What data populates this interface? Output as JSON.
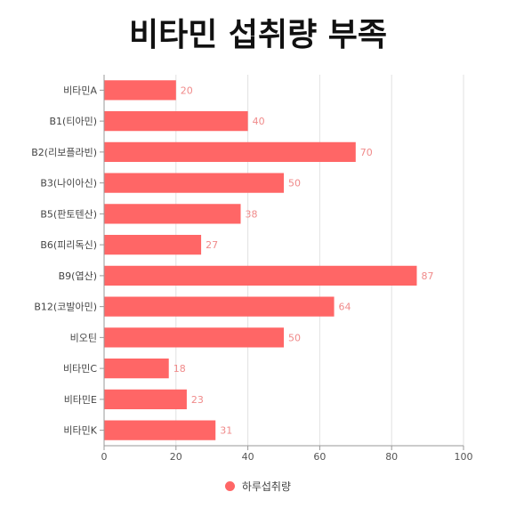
{
  "chart_data": {
    "type": "bar",
    "orientation": "horizontal",
    "title": "비타민 섭취량 부족",
    "categories": [
      "비타민A",
      "B1(티아민)",
      "B2(리보플라빈)",
      "B3(나이아신)",
      "B5(판토텐산)",
      "B6(피리독신)",
      "B9(엽산)",
      "B12(코발아민)",
      "비오틴",
      "비타민C",
      "비타민E",
      "비타민K"
    ],
    "series": [
      {
        "name": "하루섭취량",
        "values": [
          20,
          40,
          70,
          50,
          38,
          27,
          87,
          64,
          50,
          18,
          23,
          31
        ],
        "color": "#ff6666"
      }
    ],
    "xlim": [
      0,
      100
    ],
    "xticks": [
      0,
      20,
      40,
      60,
      80,
      100
    ],
    "grid": "vertical",
    "legend_position": "bottom"
  }
}
